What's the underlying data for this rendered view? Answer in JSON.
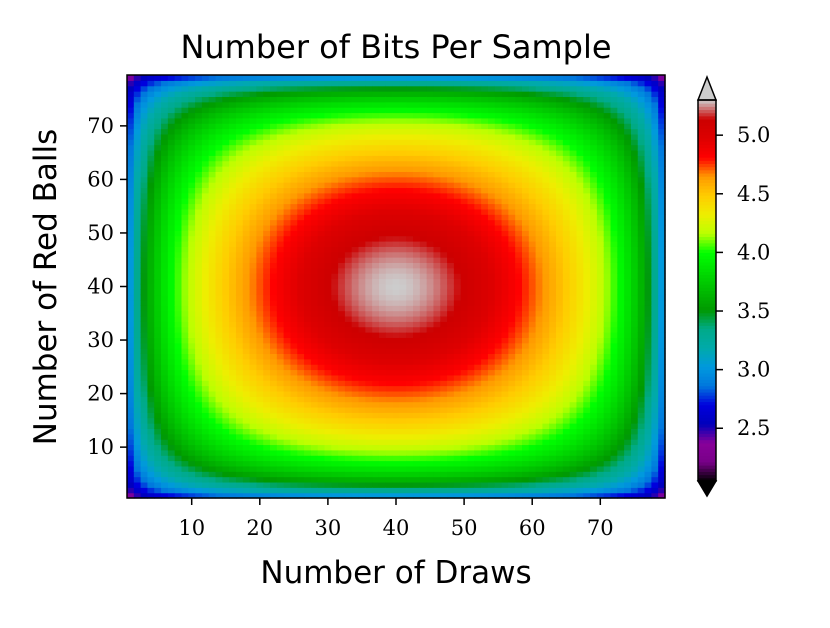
{
  "chart_data": {
    "type": "heatmap",
    "title": "Number of Bits Per Sample",
    "xlabel": "Number of Draws",
    "ylabel": "Number of Red Balls",
    "x_range": [
      1,
      79
    ],
    "y_range": [
      1,
      79
    ],
    "xlim": [
      0.5,
      79.5
    ],
    "ylim": [
      0.5,
      79.5
    ],
    "x_ticks": [
      10,
      20,
      30,
      40,
      50,
      60,
      70
    ],
    "y_ticks": [
      10,
      20,
      30,
      40,
      50,
      60,
      70
    ],
    "x_tick_labels": [
      "10",
      "20",
      "30",
      "40",
      "50",
      "60",
      "70"
    ],
    "y_tick_labels": [
      "10",
      "20",
      "30",
      "40",
      "50",
      "60",
      "70"
    ],
    "z_min": 2.05,
    "z_max": 5.3,
    "z_peak": 5.3,
    "colorbar": {
      "ticks": [
        2.5,
        3.0,
        3.5,
        4.0,
        4.5,
        5.0
      ],
      "tick_labels": [
        "2.5",
        "3.0",
        "3.5",
        "4.0",
        "4.5",
        "5.0"
      ],
      "extend": "both",
      "colormap": "nipy_spectral",
      "under_color": "#000000",
      "over_color": "#cccccc"
    },
    "grid": false
  }
}
